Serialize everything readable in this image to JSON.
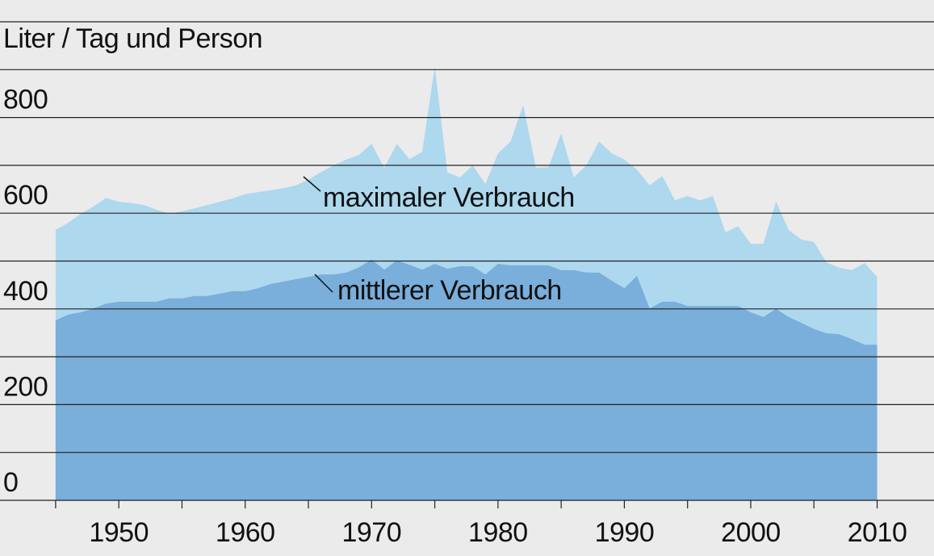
{
  "chart_data": {
    "type": "area",
    "title": "Liter / Tag und Person",
    "annotations": [
      "maximaler Verbrauch",
      "mittlerer Verbrauch"
    ],
    "x": [
      1945,
      1946,
      1947,
      1948,
      1949,
      1950,
      1951,
      1952,
      1953,
      1954,
      1955,
      1956,
      1957,
      1958,
      1959,
      1960,
      1961,
      1962,
      1963,
      1964,
      1965,
      1966,
      1967,
      1968,
      1969,
      1970,
      1971,
      1972,
      1973,
      1974,
      1975,
      1976,
      1977,
      1978,
      1979,
      1980,
      1981,
      1982,
      1983,
      1984,
      1985,
      1986,
      1987,
      1988,
      1989,
      1990,
      1991,
      1992,
      1993,
      1994,
      1995,
      1996,
      1997,
      1998,
      1999,
      2000,
      2001,
      2002,
      2003,
      2004,
      2005,
      2006,
      2007,
      2008,
      2009,
      2010
    ],
    "series": [
      {
        "name": "maximaler Verbrauch",
        "color": "#add8ee",
        "values": [
          565,
          580,
          599,
          614,
          632,
          624,
          621,
          617,
          607,
          599,
          604,
          610,
          617,
          624,
          631,
          640,
          644,
          648,
          652,
          658,
          670,
          686,
          700,
          712,
          722,
          745,
          695,
          745,
          713,
          728,
          906,
          685,
          675,
          700,
          661,
          725,
          750,
          826,
          695,
          696,
          767,
          675,
          700,
          750,
          725,
          712,
          691,
          658,
          678,
          627,
          636,
          627,
          636,
          560,
          573,
          536,
          536,
          624,
          565,
          545,
          540,
          497,
          486,
          481,
          496,
          467
        ]
      },
      {
        "name": "mittlerer Verbrauch",
        "color": "#7aaedb",
        "values": [
          376,
          388,
          393,
          401,
          411,
          415,
          415,
          415,
          415,
          422,
          422,
          427,
          427,
          432,
          437,
          437,
          443,
          452,
          457,
          462,
          467,
          472,
          472,
          476,
          487,
          503,
          482,
          501,
          492,
          482,
          494,
          484,
          489,
          489,
          472,
          494,
          491,
          491,
          491,
          491,
          481,
          481,
          476,
          476,
          459,
          443,
          469,
          401,
          415,
          415,
          406,
          406,
          406,
          406,
          406,
          393,
          383,
          400,
          383,
          371,
          358,
          349,
          347,
          337,
          325,
          325
        ]
      }
    ],
    "xlim": [
      1940.6,
      2014.5
    ],
    "xticks": [
      1950,
      1960,
      1970,
      1980,
      1990,
      2000,
      2010
    ],
    "minor_xticks": [
      1945,
      1955,
      1965,
      1975,
      1985,
      1995,
      2005
    ],
    "ylim": [
      0,
      1000
    ],
    "yticks": [
      0,
      200,
      400,
      600,
      800
    ],
    "minor_yticks": [
      100,
      300,
      500,
      700,
      900,
      1000
    ],
    "grid": true
  }
}
